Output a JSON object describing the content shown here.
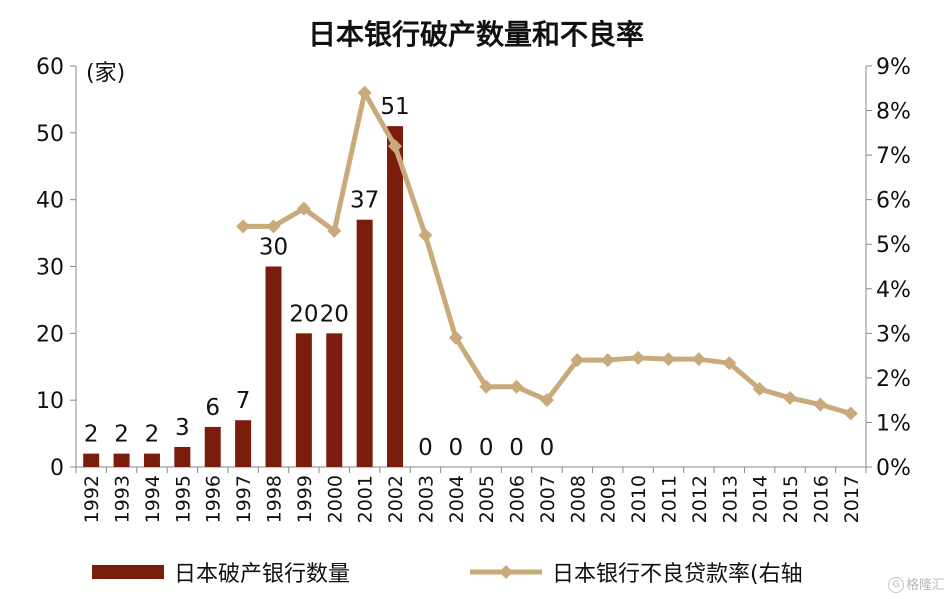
{
  "chart_data": {
    "type": "bar",
    "title": "日本银行破产数量和不良率",
    "y_left_unit": "(家)",
    "ylim_left": [
      0,
      60
    ],
    "yticks_left": [
      "0",
      "10",
      "20",
      "30",
      "40",
      "50",
      "60"
    ],
    "ylim_right": [
      0,
      9
    ],
    "yticks_right": [
      "0%",
      "1%",
      "2%",
      "3%",
      "4%",
      "5%",
      "6%",
      "7%",
      "8%",
      "9%"
    ],
    "categories": [
      "1992",
      "1993",
      "1994",
      "1995",
      "1996",
      "1997",
      "1998",
      "1999",
      "2000",
      "2001",
      "2002",
      "2003",
      "2004",
      "2005",
      "2006",
      "2007",
      "2008",
      "2009",
      "2010",
      "2011",
      "2012",
      "2013",
      "2014",
      "2015",
      "2016",
      "2017"
    ],
    "series": [
      {
        "name": "日本破产银行数量",
        "type": "bar",
        "axis": "left",
        "color": "#7b1d0c",
        "values": [
          2,
          2,
          2,
          3,
          6,
          7,
          30,
          20,
          20,
          37,
          51,
          0,
          0,
          0,
          0,
          0,
          null,
          null,
          null,
          null,
          null,
          null,
          null,
          null,
          null,
          null
        ],
        "labels": [
          "2",
          "2",
          "2",
          "3",
          "6",
          "7",
          "30",
          "20",
          "20",
          "37",
          "51",
          "0",
          "0",
          "0",
          "0",
          "0",
          "",
          "",
          "",
          "",
          "",
          "",
          "",
          "",
          "",
          ""
        ]
      },
      {
        "name": "日本银行不良贷款率(右轴",
        "type": "line",
        "axis": "right",
        "color": "#c9aa7b",
        "values": [
          null,
          null,
          null,
          null,
          null,
          5.4,
          5.4,
          5.8,
          5.3,
          8.4,
          7.2,
          5.2,
          2.9,
          1.8,
          1.8,
          1.5,
          2.4,
          2.4,
          2.45,
          2.42,
          2.42,
          2.33,
          1.75,
          1.55,
          1.4,
          1.2
        ]
      }
    ],
    "legend_position": "bottom"
  },
  "watermark": {
    "logo": "G",
    "text": "格隆汇"
  }
}
